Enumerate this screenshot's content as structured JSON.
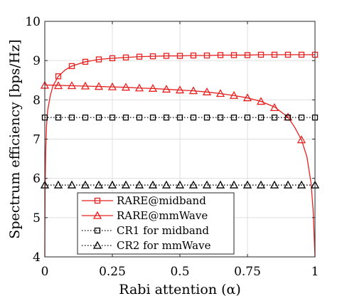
{
  "chart_data": {
    "type": "line",
    "title": "",
    "xlabel": "Rabi attention (α)",
    "ylabel": "Spectrum efficiency [bps/Hz]",
    "xlim": [
      0,
      1
    ],
    "ylim": [
      4,
      10
    ],
    "xticks": [
      0,
      0.25,
      0.5,
      0.75,
      1
    ],
    "xtick_labels": [
      "0",
      "0.25",
      "0.5",
      "0.75",
      "1"
    ],
    "yticks": [
      4,
      5,
      6,
      7,
      8,
      9,
      10
    ],
    "ytick_labels": [
      "4",
      "5",
      "6",
      "7",
      "8",
      "9",
      "10"
    ],
    "grid": true,
    "legend_position": "bottom-center",
    "marker_x": [
      0,
      0.05,
      0.1,
      0.15,
      0.2,
      0.25,
      0.3,
      0.35,
      0.4,
      0.45,
      0.5,
      0.55,
      0.6,
      0.65,
      0.7,
      0.75,
      0.8,
      0.85,
      0.9,
      0.95,
      1
    ],
    "series": [
      {
        "name": "RARE@midband",
        "color": "#e8201f",
        "line_style": "solid",
        "marker": "square",
        "curve_x": [
          0,
          0.001,
          0.003,
          0.006,
          0.01,
          0.02,
          0.03,
          0.05,
          0.075,
          0.1,
          0.15,
          0.2,
          0.25,
          0.3,
          0.35,
          0.4,
          0.45,
          0.5,
          0.55,
          0.6,
          0.65,
          0.7,
          0.75,
          0.8,
          0.85,
          0.9,
          0.95,
          1
        ],
        "curve_y": [
          4.0,
          5.6,
          6.6,
          7.3,
          7.7,
          8.1,
          8.35,
          8.6,
          8.76,
          8.86,
          8.97,
          9.03,
          9.06,
          9.08,
          9.1,
          9.11,
          9.12,
          9.12,
          9.13,
          9.13,
          9.14,
          9.14,
          9.14,
          9.15,
          9.15,
          9.15,
          9.15,
          9.15
        ],
        "marker_y": [
          null,
          8.6,
          8.86,
          8.97,
          9.03,
          9.06,
          9.08,
          9.1,
          9.11,
          9.12,
          9.12,
          9.13,
          9.13,
          9.14,
          9.14,
          9.14,
          9.15,
          9.15,
          9.15,
          9.15,
          9.15
        ]
      },
      {
        "name": "RARE@mmWave",
        "color": "#e8201f",
        "line_style": "solid",
        "marker": "triangle",
        "curve_x": [
          0,
          0.05,
          0.1,
          0.15,
          0.2,
          0.25,
          0.3,
          0.35,
          0.4,
          0.45,
          0.5,
          0.55,
          0.6,
          0.65,
          0.7,
          0.75,
          0.8,
          0.85,
          0.9,
          0.925,
          0.95,
          0.97,
          0.985,
          0.993,
          1
        ],
        "curve_y": [
          8.38,
          8.37,
          8.36,
          8.35,
          8.34,
          8.33,
          8.32,
          8.3,
          8.29,
          8.27,
          8.25,
          8.23,
          8.2,
          8.16,
          8.11,
          8.05,
          7.96,
          7.82,
          7.56,
          7.3,
          6.98,
          6.55,
          5.9,
          5.2,
          4.0
        ],
        "marker_y": [
          8.37,
          8.36,
          8.36,
          8.35,
          8.34,
          8.33,
          8.32,
          8.3,
          8.29,
          8.27,
          8.25,
          8.23,
          8.2,
          8.16,
          8.11,
          8.05,
          7.96,
          7.8,
          7.56,
          6.98,
          null
        ]
      },
      {
        "name": "CR1 for midband",
        "color": "#000000",
        "line_style": "dotted",
        "marker": "square",
        "curve_x": [
          0,
          1
        ],
        "curve_y": [
          7.55,
          7.55
        ],
        "marker_y": [
          7.55,
          7.55,
          7.55,
          7.55,
          7.55,
          7.55,
          7.55,
          7.55,
          7.55,
          7.55,
          7.55,
          7.55,
          7.55,
          7.55,
          7.55,
          7.55,
          7.55,
          7.55,
          7.55,
          7.55,
          7.55
        ]
      },
      {
        "name": "CR2 for mmWave",
        "color": "#000000",
        "line_style": "dotted",
        "marker": "triangle",
        "curve_x": [
          0,
          1
        ],
        "curve_y": [
          5.83,
          5.83
        ],
        "marker_y": [
          5.83,
          5.83,
          5.83,
          5.83,
          5.83,
          5.83,
          5.83,
          5.83,
          5.83,
          5.83,
          5.83,
          5.83,
          5.83,
          5.83,
          5.83,
          5.83,
          5.83,
          5.83,
          5.83,
          5.83,
          5.83
        ]
      }
    ]
  }
}
